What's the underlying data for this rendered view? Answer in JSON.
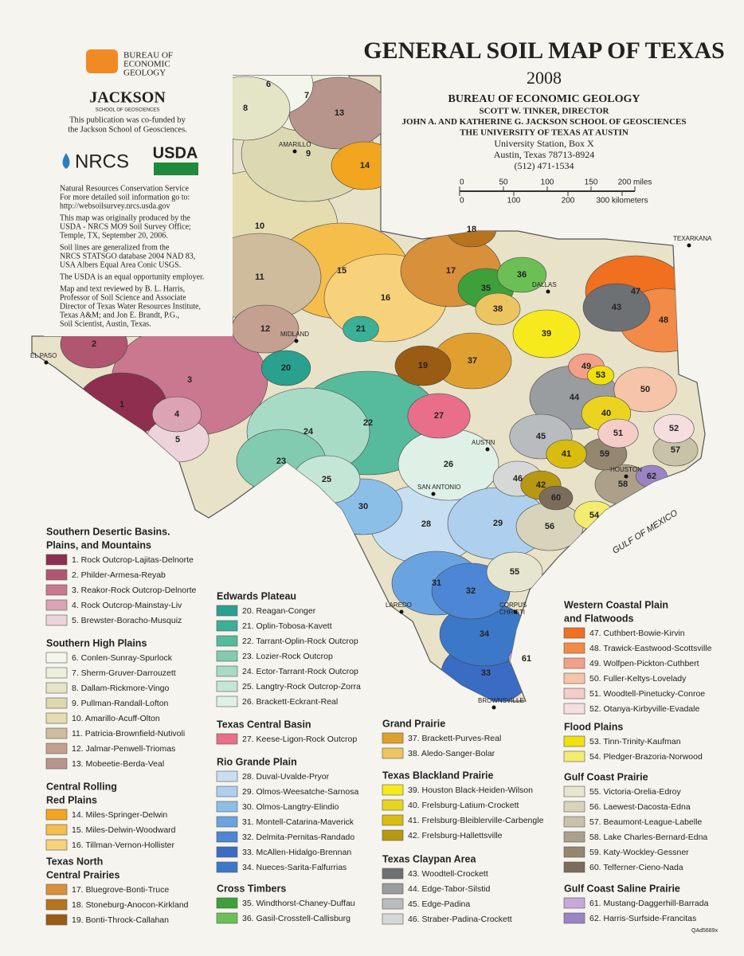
{
  "header": {
    "title": "GENERAL SOIL MAP  OF TEXAS",
    "year": "2008",
    "org": "BUREAU OF ECONOMIC GEOLOGY",
    "director": "SCOTT W. TINKER, DIRECTOR",
    "school": "JOHN A. AND KATHERINE G. JACKSON SCHOOL OF GEOSCIENCES",
    "university": "THE UNIVERSITY OF TEXAS AT AUSTIN",
    "address": [
      "University Station, Box X",
      "Austin, Texas  78713-8924",
      "(512) 471-1534"
    ]
  },
  "logos": {
    "beg": [
      "BUREAU OF",
      "ECONOMIC",
      "GEOLOGY"
    ],
    "jackson": "JACKSON",
    "jackson_sub": "SCHOOL OF GEOSCIENCES",
    "nrcs": "NRCS",
    "usda": "USDA"
  },
  "credits": {
    "cofund": [
      "This publication was co-funded by",
      "the Jackson School of Geosciences."
    ],
    "notes": [
      [
        "Natural Resources Conservation Service",
        "For more detailed soil information go to:",
        "http://websoilsurvey.nrcs.usda.gov"
      ],
      [
        "This map was originally produced by the",
        "USDA - NRCS MO9 Soil Survey Office;",
        "Temple, TX, September 20, 2006."
      ],
      [
        "Soil lines are generalized from the",
        "NRCS STATSGO database 2004 NAD 83,",
        "USA Albers Equal Area Conic USGS."
      ],
      [
        "The USDA is an equal opportunity employer."
      ],
      [
        "Map and text reviewed by B. L. Harris,",
        "Professor of Soil Science and Associate",
        "Director of Texas Water Resources Institute,",
        "Texas A&M; and Jon E. Brandt, P.G.,",
        "Soil Scientist, Austin, Texas."
      ]
    ]
  },
  "scale": {
    "miles": [
      "0",
      "50",
      "100",
      "150",
      "200 miles"
    ],
    "km": [
      "0",
      "100",
      "200",
      "300 kilometers"
    ]
  },
  "map": {
    "cities": [
      [
        "AMARILLO"
      ],
      [
        "MIDLAND"
      ],
      [
        "EL PASO"
      ],
      [
        "DALLAS"
      ],
      [
        "TEXARKANA"
      ],
      [
        "AUSTIN"
      ],
      [
        "SAN ANTONIO"
      ],
      [
        "HOUSTON"
      ],
      [
        "LAREDO"
      ],
      [
        "CORPUS",
        "CHRISTI"
      ],
      [
        "BROWNSVILLE"
      ]
    ],
    "units": [
      "1",
      "2",
      "3",
      "4",
      "5",
      "6",
      "7",
      "8",
      "9",
      "10",
      "11",
      "12",
      "13",
      "14",
      "15",
      "16",
      "17",
      "18",
      "19",
      "20",
      "21",
      "22",
      "23",
      "24",
      "25",
      "26",
      "27",
      "28",
      "29",
      "30",
      "31",
      "32",
      "33",
      "34",
      "35",
      "36",
      "37",
      "38",
      "39",
      "40",
      "41",
      "42",
      "43",
      "44",
      "45",
      "46",
      "47",
      "48",
      "49",
      "50",
      "51",
      "52",
      "53",
      "54",
      "55",
      "56",
      "57",
      "58",
      "59",
      "60",
      "61",
      "62"
    ],
    "water": "GULF  OF  MEXICO"
  },
  "legend": {
    "groups": [
      {
        "title": [
          "Southern Desertic Basins.",
          "Plains, and Mountains"
        ],
        "items": [
          {
            "label": "1. Rock Outcrop-Lajitas-Delnorte",
            "color": "#8e2f4f"
          },
          {
            "label": "2. Philder-Armesa-Reyab",
            "color": "#b05670"
          },
          {
            "label": "3. Reakor-Rock Outcrop-Delnorte",
            "color": "#c97890"
          },
          {
            "label": "4. Rock Outcrop-Mainstay-Liv",
            "color": "#dba3b3"
          },
          {
            "label": "5. Brewster-Boracho-Musquiz",
            "color": "#ecd4da"
          }
        ]
      },
      {
        "title": [
          "Southern High Plains"
        ],
        "items": [
          {
            "label": "6. Conlen-Sunray-Spurlock",
            "color": "#f4f6ec"
          },
          {
            "label": "7. Sherm-Gruver-Darrouzett",
            "color": "#ecefdc"
          },
          {
            "label": "8. Dallam-Rickmore-Vingo",
            "color": "#e4e4c6"
          },
          {
            "label": "9. Pullman-Randall-Lofton",
            "color": "#dcd8b2"
          },
          {
            "label": "10. Amarillo-Acuff-Olton",
            "color": "#e5dcb0"
          },
          {
            "label": "11. Patricia-Brownfield-Nutivoli",
            "color": "#cfbc9c"
          },
          {
            "label": "12. Jalmar-Penwell-Triomas",
            "color": "#c4a090"
          },
          {
            "label": "13. Mobeetie-Berda-Veal",
            "color": "#b8958c"
          }
        ]
      },
      {
        "title": [
          "Central Rolling",
          "Red Plains"
        ],
        "items": [
          {
            "label": "14. Miles-Springer-Delwin",
            "color": "#f2a51f"
          },
          {
            "label": "15. Miles-Delwin-Woodward",
            "color": "#f5bd4a"
          },
          {
            "label": "16. Tillman-Vernon-Hollister",
            "color": "#f8d27a"
          }
        ]
      },
      {
        "title": [
          "Texas North",
          "Central Prairies"
        ],
        "items": [
          {
            "label": "17. Bluegrove-Bonti-Truce",
            "color": "#d9903a"
          },
          {
            "label": "18. Stoneburg-Anocon-Kirkland",
            "color": "#b8731e"
          },
          {
            "label": "19. Bonti-Throck-Callahan",
            "color": "#9a5b12"
          }
        ]
      },
      {
        "title": [
          "Edwards Plateau"
        ],
        "items": [
          {
            "label": "20. Reagan-Conger",
            "color": "#2aa08e"
          },
          {
            "label": "21. Oplin-Tobosa-Kavett",
            "color": "#3ab096"
          },
          {
            "label": "22. Tarrant-Oplin-Rock Outcrop",
            "color": "#55bb9c"
          },
          {
            "label": "23. Lozier-Rock Outcrop",
            "color": "#82cbb0"
          },
          {
            "label": "24. Ector-Tarrant-Rock Outcrop",
            "color": "#a8dbc6"
          },
          {
            "label": "25. Langtry-Rock Outcrop-Zorra",
            "color": "#c4e6d6"
          },
          {
            "label": "26. Brackett-Eckrant-Real",
            "color": "#dff0e6"
          }
        ]
      },
      {
        "title": [
          "Texas Central Basin"
        ],
        "items": [
          {
            "label": "27. Keese-Ligon-Rock Outcrop",
            "color": "#e86e8a"
          }
        ]
      },
      {
        "title": [
          "Rio Grande Plain"
        ],
        "items": [
          {
            "label": "28. Duval-Uvalde-Pryor",
            "color": "#c8dff2"
          },
          {
            "label": "29. Olmos-Weesatche-Sarnosa",
            "color": "#aed0ee"
          },
          {
            "label": "30. Olmos-Langtry-Elindio",
            "color": "#8cbfe8"
          },
          {
            "label": "31. Montell-Catarina-Maverick",
            "color": "#6aa4e0"
          },
          {
            "label": "32. Delmita-Pernitas-Randado",
            "color": "#4d86d4"
          },
          {
            "label": "33. McAllen-Hidalgo-Brennan",
            "color": "#3a6cc4"
          },
          {
            "label": "34. Nueces-Sarita-Falfurrias",
            "color": "#3c78c8"
          }
        ]
      },
      {
        "title": [
          "Cross Timbers"
        ],
        "items": [
          {
            "label": "35. Windthorst-Chaney-Duffau",
            "color": "#3da03a"
          },
          {
            "label": "36. Gasil-Crosstell-Callisburg",
            "color": "#6cbf55"
          }
        ]
      },
      {
        "title": [
          "Grand Prairie"
        ],
        "items": [
          {
            "label": "37. Brackett-Purves-Real",
            "color": "#e0a030"
          },
          {
            "label": "38. Aledo-Sanger-Bolar",
            "color": "#ecc460"
          }
        ]
      },
      {
        "title": [
          "Texas Blackland Prairie"
        ],
        "items": [
          {
            "label": "39. Houston Black-Heiden-Wilson",
            "color": "#f7ea1c"
          },
          {
            "label": "40. Frelsburg-Latium-Crockett",
            "color": "#ead420"
          },
          {
            "label": "41. Frelsburg-Bleiblerville-Carbengle",
            "color": "#d8bc10"
          },
          {
            "label": "42. Frelsburg-Hallettsville",
            "color": "#b89810"
          }
        ]
      },
      {
        "title": [
          "Texas Claypan Area"
        ],
        "items": [
          {
            "label": "43. Woodtell-Crockett",
            "color": "#6e7174"
          },
          {
            "label": "44. Edge-Tabor-Silstid",
            "color": "#9a9da0"
          },
          {
            "label": "45. Edge-Padina",
            "color": "#b9bcbe"
          },
          {
            "label": "46. Straber-Padina-Crockett",
            "color": "#d6d8d8"
          }
        ]
      },
      {
        "title": [
          "Western Coastal Plain",
          "and Flatwoods"
        ],
        "items": [
          {
            "label": "47. Cuthbert-Bowie-Kirvin",
            "color": "#f07020"
          },
          {
            "label": "48. Trawick-Eastwood-Scottsville",
            "color": "#f28a48"
          },
          {
            "label": "49. Wolfpen-Pickton-Cuthbert",
            "color": "#f3a088"
          },
          {
            "label": "50. Fuller-Keltys-Lovelady",
            "color": "#f6c4a8"
          },
          {
            "label": "51. Woodtell-Pinetucky-Conroe",
            "color": "#f4ccc8"
          },
          {
            "label": "52. Otanya-Kirbyville-Evadale",
            "color": "#f6dede"
          }
        ]
      },
      {
        "title": [
          "Flood Plains"
        ],
        "items": [
          {
            "label": "53. Tinn-Trinity-Kaufman",
            "color": "#efe010"
          },
          {
            "label": "54. Pledger-Brazoria-Norwood",
            "color": "#f4ec70"
          }
        ]
      },
      {
        "title": [
          "Gulf Coast Prairie"
        ],
        "items": [
          {
            "label": "55. Victoria-Orelia-Edroy",
            "color": "#e6e6d0"
          },
          {
            "label": "56. Laewest-Dacosta-Edna",
            "color": "#d8d4bc"
          },
          {
            "label": "57. Beaumont-League-Labelle",
            "color": "#c8c2a8"
          },
          {
            "label": "58. Lake Charles-Bernard-Edna",
            "color": "#ada08a"
          },
          {
            "label": "59. Katy-Wockley-Gessner",
            "color": "#958670"
          },
          {
            "label": "60. Telferner-Cieno-Nada",
            "color": "#7c6c5c"
          }
        ]
      },
      {
        "title": [
          "Gulf Coast Saline Prairie"
        ],
        "items": [
          {
            "label": "61. Mustang-Daggerhill-Barrada",
            "color": "#c8a8d8"
          },
          {
            "label": "62. Harris-Surfside-Francitas",
            "color": "#9a84c4"
          }
        ]
      }
    ]
  },
  "footer": "QAd5689x"
}
